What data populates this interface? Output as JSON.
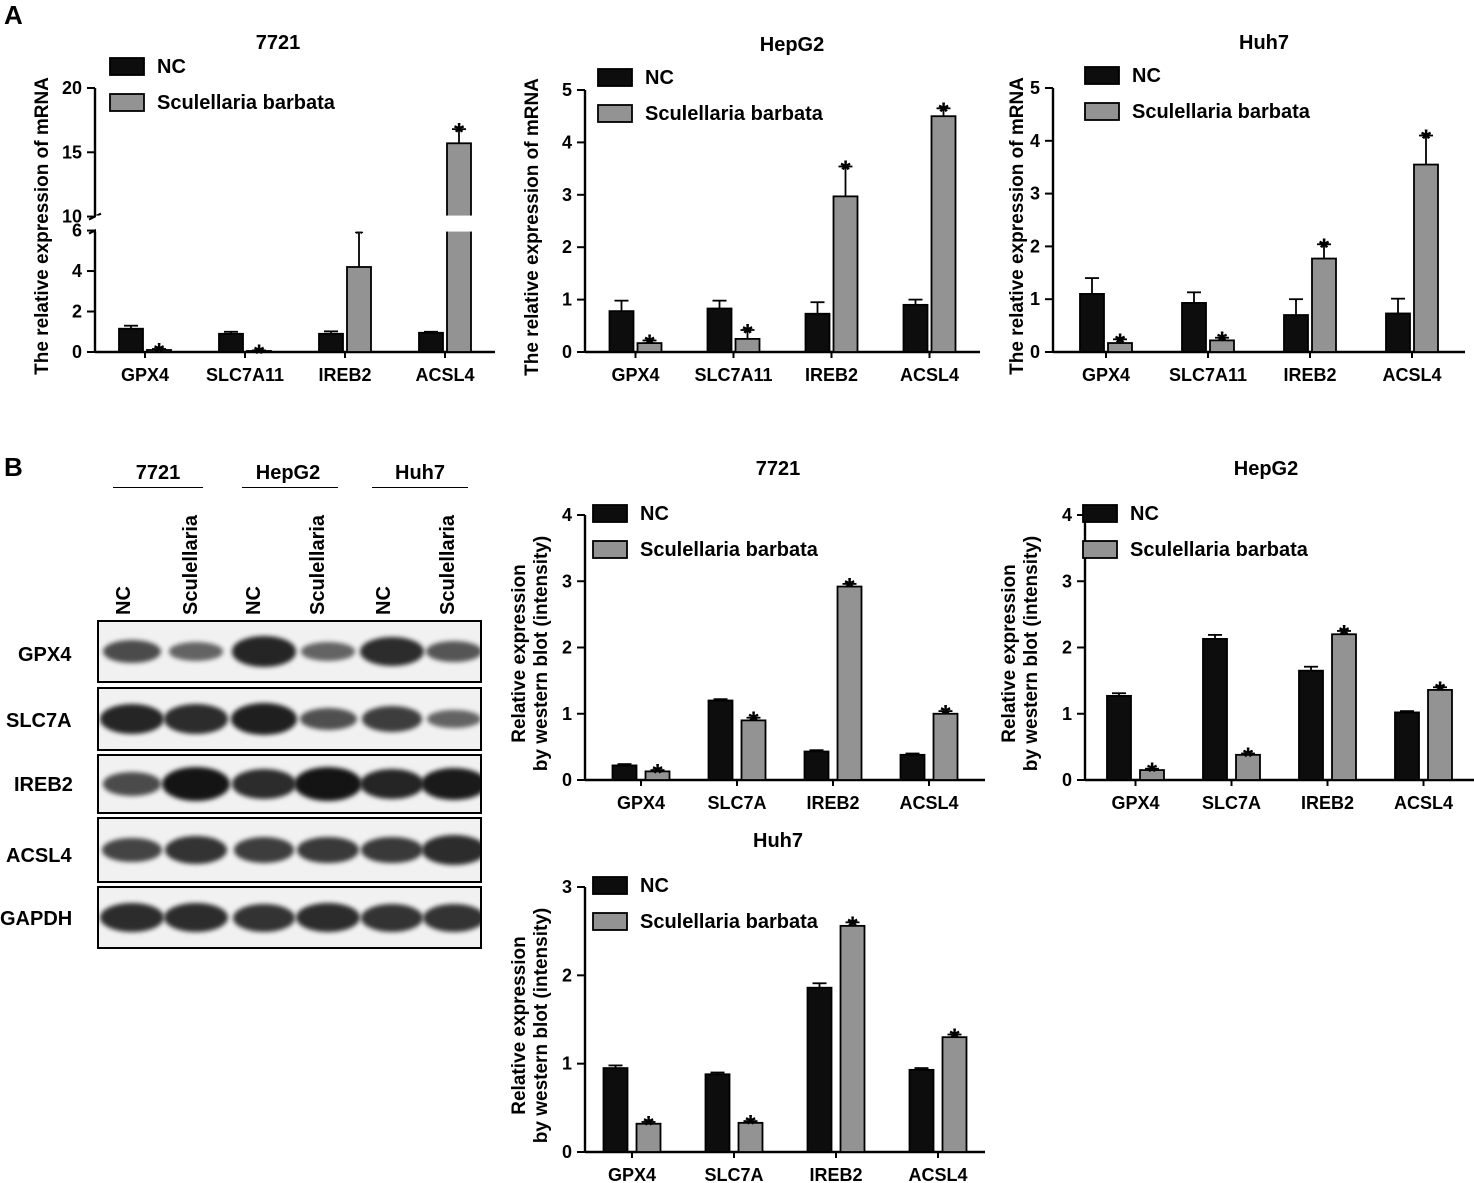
{
  "panel_labels": {
    "a": "A",
    "b": "B"
  },
  "colors": {
    "nc": "#0d0d0d",
    "sb": "#939393",
    "axis": "#000000"
  },
  "chart_data": [
    {
      "id": "a-7721",
      "type": "bar",
      "title": "7721",
      "ylabel": "The relative expression of mRNA",
      "categories": [
        "GPX4",
        "SLC7A11",
        "IREB2",
        "ACSL4"
      ],
      "series": [
        {
          "name": "NC",
          "values": [
            1.15,
            0.9,
            0.9,
            0.95
          ],
          "errors": [
            0.15,
            0.1,
            0.12,
            0.05
          ]
        },
        {
          "name": "Sculellaria barbata",
          "values": [
            0.1,
            0.05,
            4.2,
            15.7
          ],
          "errors": [
            0.05,
            0.03,
            1.8,
            1.1
          ]
        }
      ],
      "significant": [
        [
          false,
          false,
          false,
          false
        ],
        [
          true,
          true,
          true,
          true
        ]
      ],
      "axis_break": {
        "lower": [
          0,
          6
        ],
        "upper": [
          10,
          20
        ]
      },
      "yticks": [
        0,
        2,
        4,
        6,
        10,
        15,
        20
      ],
      "legend": "top-left"
    },
    {
      "id": "a-hepg2",
      "type": "bar",
      "title": "HepG2",
      "ylabel": "The relative expression of mRNA",
      "categories": [
        "GPX4",
        "SLC7A11",
        "IREB2",
        "ACSL4"
      ],
      "series": [
        {
          "name": "NC",
          "values": [
            0.78,
            0.83,
            0.73,
            0.9
          ],
          "errors": [
            0.2,
            0.15,
            0.22,
            0.1
          ]
        },
        {
          "name": "Sculellaria barbata",
          "values": [
            0.17,
            0.25,
            2.97,
            4.5
          ],
          "errors": [
            0.05,
            0.17,
            0.57,
            0.15
          ]
        }
      ],
      "significant": [
        [
          false,
          false,
          false,
          false
        ],
        [
          true,
          true,
          true,
          true
        ]
      ],
      "ylim": [
        0,
        5
      ],
      "yticks": [
        0,
        1,
        2,
        3,
        4,
        5
      ],
      "legend": "top-left"
    },
    {
      "id": "a-huh7",
      "type": "bar",
      "title": "Huh7",
      "ylabel": "The relative expression of mRNA",
      "categories": [
        "GPX4",
        "SLC7A11",
        "IREB2",
        "ACSL4"
      ],
      "series": [
        {
          "name": "NC",
          "values": [
            1.1,
            0.93,
            0.7,
            0.73
          ],
          "errors": [
            0.3,
            0.2,
            0.3,
            0.28
          ]
        },
        {
          "name": "Sculellaria barbata",
          "values": [
            0.17,
            0.22,
            1.77,
            3.55
          ],
          "errors": [
            0.07,
            0.05,
            0.27,
            0.55
          ]
        }
      ],
      "significant": [
        [
          false,
          false,
          false,
          false
        ],
        [
          true,
          true,
          true,
          true
        ]
      ],
      "ylim": [
        0,
        5
      ],
      "yticks": [
        0,
        1,
        2,
        3,
        4,
        5
      ],
      "legend": "top-left"
    },
    {
      "id": "b-7721",
      "type": "bar",
      "title": "7721",
      "ylabel": [
        "Relative expression",
        "by western blot (intensity)"
      ],
      "categories": [
        "GPX4",
        "SLC7A",
        "IREB2",
        "ACSL4"
      ],
      "series": [
        {
          "name": "NC",
          "values": [
            0.22,
            1.2,
            0.43,
            0.38
          ],
          "errors": [
            0.02,
            0.02,
            0.02,
            0.02
          ]
        },
        {
          "name": "Sculellaria barbata",
          "values": [
            0.13,
            0.9,
            2.92,
            1.0
          ],
          "errors": [
            0.02,
            0.04,
            0.04,
            0.04
          ]
        }
      ],
      "significant": [
        [
          false,
          false,
          false,
          false
        ],
        [
          true,
          true,
          true,
          true
        ]
      ],
      "ylim": [
        0,
        4
      ],
      "yticks": [
        0,
        1,
        2,
        3,
        4
      ],
      "legend": "top-left"
    },
    {
      "id": "b-hepg2",
      "type": "bar",
      "title": "HepG2",
      "ylabel": [
        "Relative expression",
        "by western blot (intensity)"
      ],
      "categories": [
        "GPX4",
        "SLC7A",
        "IREB2",
        "ACSL4"
      ],
      "series": [
        {
          "name": "NC",
          "values": [
            1.27,
            2.13,
            1.65,
            1.02
          ],
          "errors": [
            0.04,
            0.06,
            0.06,
            0.02
          ]
        },
        {
          "name": "Sculellaria barbata",
          "values": [
            0.15,
            0.38,
            2.2,
            1.36
          ],
          "errors": [
            0.02,
            0.02,
            0.05,
            0.04
          ]
        }
      ],
      "significant": [
        [
          false,
          false,
          false,
          false
        ],
        [
          true,
          true,
          true,
          true
        ]
      ],
      "ylim": [
        0,
        4
      ],
      "yticks": [
        0,
        1,
        2,
        3,
        4
      ],
      "legend": "top-left"
    },
    {
      "id": "b-huh7",
      "type": "bar",
      "title": "Huh7",
      "ylabel": [
        "Relative expression",
        "by western blot (intensity)"
      ],
      "categories": [
        "GPX4",
        "SLC7A",
        "IREB2",
        "ACSL4"
      ],
      "series": [
        {
          "name": "NC",
          "values": [
            0.95,
            0.88,
            1.86,
            0.93
          ],
          "errors": [
            0.03,
            0.02,
            0.05,
            0.02
          ]
        },
        {
          "name": "Sculellaria barbata",
          "values": [
            0.32,
            0.33,
            2.56,
            1.3
          ],
          "errors": [
            0.02,
            0.02,
            0.04,
            0.03
          ]
        }
      ],
      "significant": [
        [
          false,
          false,
          false,
          false
        ],
        [
          true,
          true,
          true,
          true
        ]
      ],
      "ylim": [
        0,
        3
      ],
      "yticks": [
        0,
        1,
        2,
        3
      ],
      "legend": "top-left"
    }
  ],
  "western_blot": {
    "cell_lines": [
      "7721",
      "HepG2",
      "Huh7"
    ],
    "lanes": [
      "NC",
      "Sculellaria",
      "NC",
      "Sculellaria",
      "NC",
      "Sculellaria"
    ],
    "proteins": [
      "GPX4",
      "SLC7A",
      "IREB2",
      "ACSL4",
      "GAPDH"
    ],
    "band_intensity": [
      [
        0.55,
        0.35,
        0.85,
        0.35,
        0.8,
        0.45
      ],
      [
        0.85,
        0.8,
        0.9,
        0.5,
        0.65,
        0.35
      ],
      [
        0.55,
        1.0,
        0.8,
        1.0,
        0.85,
        0.95
      ],
      [
        0.6,
        0.75,
        0.65,
        0.7,
        0.7,
        0.8
      ],
      [
        0.8,
        0.8,
        0.75,
        0.8,
        0.75,
        0.75
      ]
    ]
  }
}
